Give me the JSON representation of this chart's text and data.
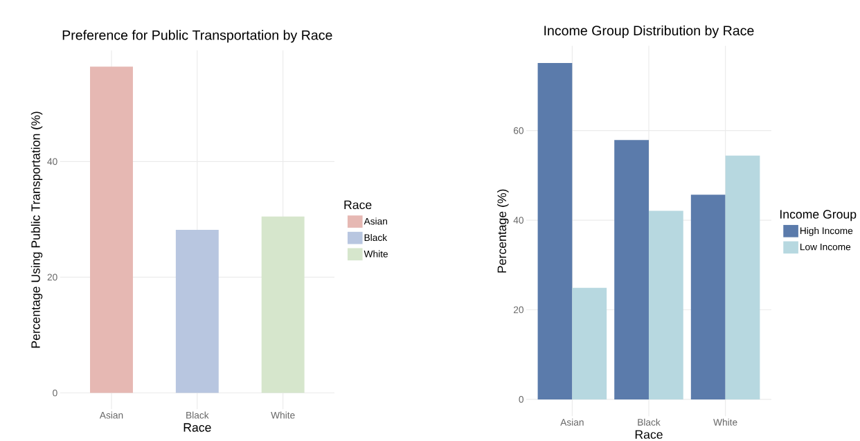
{
  "chart_data": [
    {
      "type": "bar",
      "title": "Preference for Public Transportation by Race",
      "xlabel": "Race",
      "ylabel": "Percentage Using Public Transportation (%)",
      "categories": [
        "Asian",
        "Black",
        "White"
      ],
      "series": [
        {
          "name": "Asian",
          "color": "#e6b8b3",
          "values": [
            56.4,
            null,
            null
          ]
        },
        {
          "name": "Black",
          "color": "#b8c6e0",
          "values": [
            null,
            28.2,
            null
          ]
        },
        {
          "name": "White",
          "color": "#d6e6cc",
          "values": [
            null,
            null,
            30.5
          ]
        }
      ],
      "ylim": [
        -2.82,
        59.2
      ],
      "yticks": [
        0,
        20,
        40
      ],
      "grid": true,
      "legend": "right",
      "legend_title": "Race"
    },
    {
      "type": "bar",
      "title": "Income Group Distribution by Race",
      "xlabel": "Race",
      "ylabel": "Percentage (%)",
      "categories": [
        "Asian",
        "Black",
        "White"
      ],
      "series": [
        {
          "name": "High Income",
          "color": "#5b7bab",
          "values": [
            75.1,
            57.9,
            45.7
          ]
        },
        {
          "name": "Low Income",
          "color": "#b7d8e0",
          "values": [
            24.9,
            42.1,
            54.4
          ]
        }
      ],
      "ylim": [
        -3.76,
        78.9
      ],
      "yticks": [
        0,
        20,
        40,
        60
      ],
      "grid": true,
      "legend": "right",
      "legend_title": "Income Group"
    }
  ]
}
